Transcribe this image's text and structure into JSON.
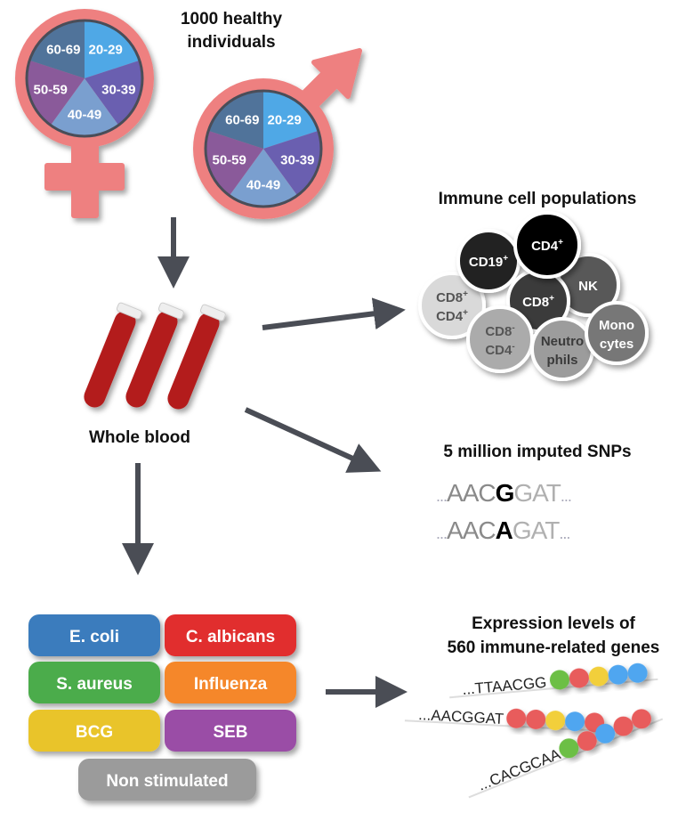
{
  "cohort": {
    "title_line1": "1000 healthy individuals",
    "title_line2": "",
    "line1": "1000 healthy",
    "line2": "individuals"
  },
  "age_groups": [
    "20-29",
    "30-39",
    "40-49",
    "50-59",
    "60-69"
  ],
  "age_colors": [
    "#4FA8E6",
    "#6A5FB0",
    "#7A9FCF",
    "#8A5A9A",
    "#50739A"
  ],
  "sex_symbol_color": "#EE8080",
  "arrow_color": "#4A4D55",
  "sample": {
    "label": "Whole blood"
  },
  "immune_cells": {
    "title": "Immune cell populations",
    "cells": [
      {
        "label1": "CD8",
        "sup1": "+",
        "label2": "CD4",
        "sup2": "+",
        "color": "#D9D9D9",
        "text_color": "#555555"
      },
      {
        "label1": "CD19",
        "sup1": "+",
        "color": "#222222",
        "text_color": "#FFFFFF"
      },
      {
        "label1": "NK",
        "color": "#585858",
        "text_color": "#FFFFFF"
      },
      {
        "label1": "CD8",
        "sup1": "+",
        "color": "#3A3A3A",
        "text_color": "#FFFFFF"
      },
      {
        "label1": "CD4",
        "sup1": "+",
        "color": "#050505",
        "text_color": "#FFFFFF"
      },
      {
        "label1": "CD8",
        "sup1": "-",
        "label2": "CD4",
        "sup2": "-",
        "color": "#ABABAB",
        "text_color": "#555555"
      },
      {
        "label1": "Neutro",
        "label2": "phils",
        "color": "#9C9C9C",
        "text_color": "#3A3A3A"
      },
      {
        "label1": "Mono",
        "label2": "cytes",
        "color": "#777777",
        "text_color": "#FFFFFF"
      }
    ]
  },
  "snps": {
    "title": "5 million imputed SNPs",
    "seq1": {
      "pre": "AACG",
      "alt": "G",
      "post": "AT",
      "prefix": "AAC",
      "variant": "G",
      "suffix": "GAT"
    },
    "seq2": {
      "prefix": "AAC",
      "variant": "A",
      "suffix": "GAT"
    },
    "ellipsis": "..."
  },
  "stimuli": [
    {
      "label": "E. coli",
      "color": "#3A7CBD"
    },
    {
      "label": "C. albicans",
      "color": "#E12E2E"
    },
    {
      "label": "S. aureus",
      "color": "#4CAC4C"
    },
    {
      "label": "Influenza",
      "color": "#F5872A"
    },
    {
      "label": "BCG",
      "color": "#E9C42B"
    },
    {
      "label": "SEB",
      "color": "#9A4DA6"
    },
    {
      "label": "Non stimulated",
      "color": "#9B9B9B"
    }
  ],
  "expression": {
    "title_line1": "Expression levels of",
    "title_line2": "560 immune-related genes",
    "strands": [
      {
        "seq": "...TTAACGG",
        "beads": [
          "#6CBF45",
          "#E85C5C",
          "#F2CF3A",
          "#4FA6F0",
          "#4FA6F0"
        ]
      },
      {
        "seq": "...AACGGAT",
        "beads": [
          "#E85C5C",
          "#E85C5C",
          "#F2CF3A",
          "#4FA6F0",
          "#E85C5C"
        ]
      },
      {
        "seq": "...CACGCAA",
        "beads": [
          "#6CBF45",
          "#E85C5C",
          "#4FA6F0",
          "#E85C5C",
          "#E85C5C"
        ]
      }
    ]
  }
}
